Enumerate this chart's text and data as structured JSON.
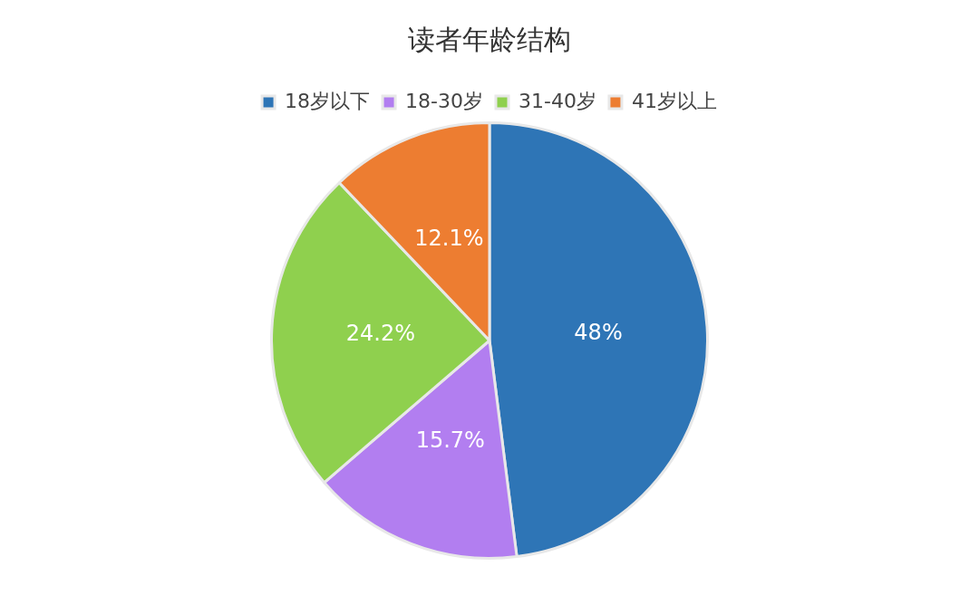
{
  "chart_data": {
    "type": "pie",
    "title": "读者年龄结构",
    "categories": [
      "18岁以下",
      "18-30岁",
      "31-40岁",
      "41岁以上"
    ],
    "values": [
      48,
      15.7,
      24.2,
      12.1
    ],
    "value_labels": [
      "48%",
      "15.7%",
      "24.2%",
      "12.1%"
    ],
    "colors": [
      "#2e75b6",
      "#b27ef0",
      "#8fd04e",
      "#ed7d31"
    ],
    "legend": "top"
  }
}
